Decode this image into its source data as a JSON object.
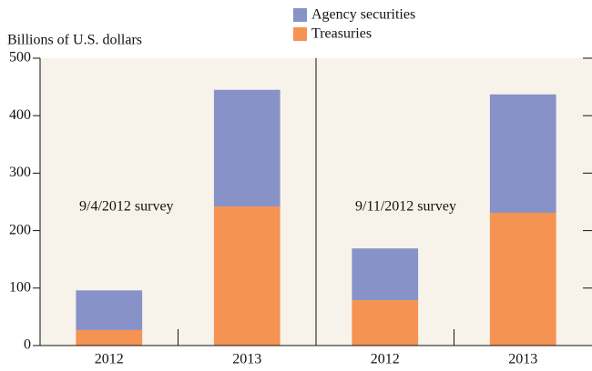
{
  "chart_data": {
    "type": "bar",
    "stacked": true,
    "y_label": "Billions of U.S. dollars",
    "categories": [
      "2012",
      "2013",
      "2012",
      "2013"
    ],
    "panels": [
      {
        "annotation": "9/4/2012 survey"
      },
      {
        "annotation": "9/11/2012 survey"
      }
    ],
    "series": [
      {
        "name": "Treasuries",
        "color": "#f59352",
        "values": [
          27,
          242,
          79,
          231
        ]
      },
      {
        "name": "Agency securities",
        "color": "#8793c8",
        "values": [
          69,
          203,
          90,
          206
        ]
      }
    ],
    "ylim": [
      0,
      500
    ],
    "yticks": [
      0,
      100,
      200,
      300,
      400,
      500
    ],
    "grid": false
  }
}
